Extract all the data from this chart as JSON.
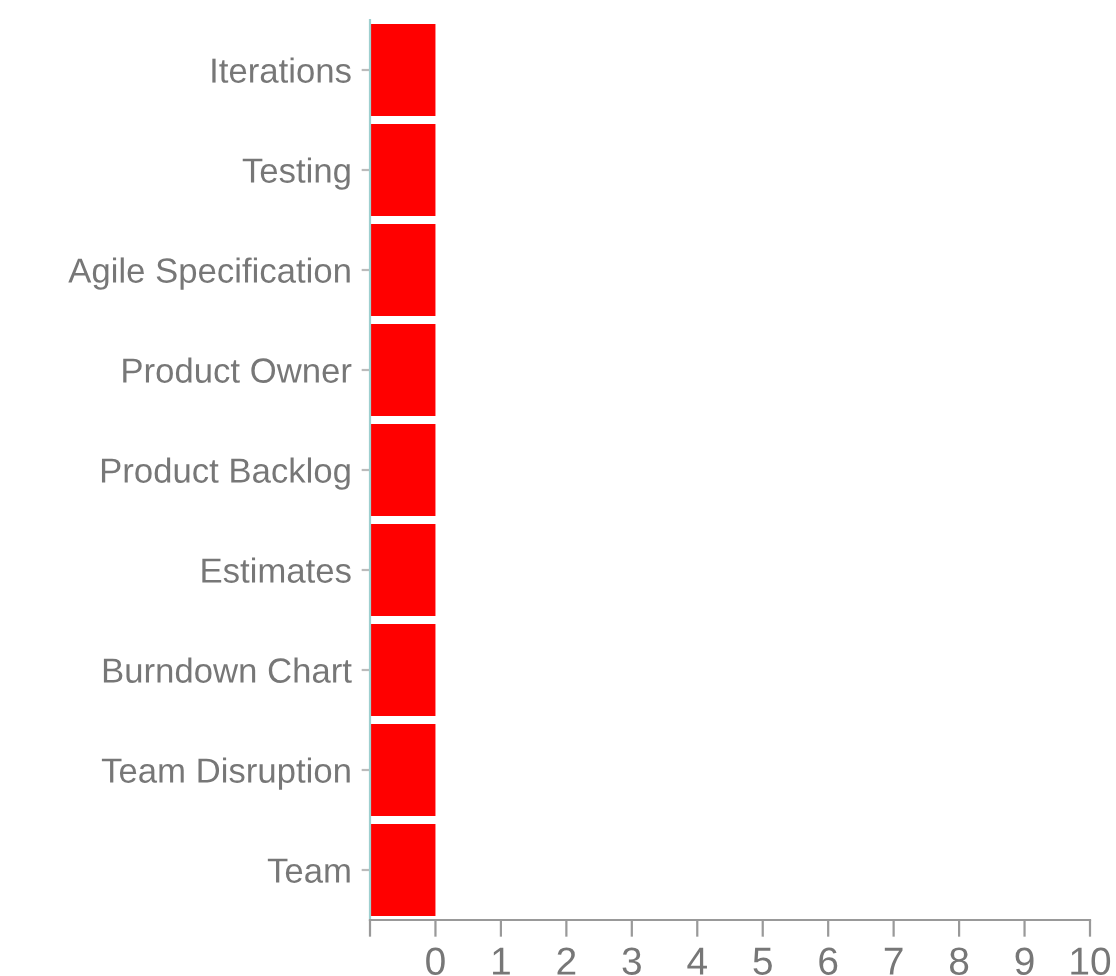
{
  "chart_data": {
    "type": "bar",
    "orientation": "horizontal",
    "categories": [
      "Iterations",
      "Testing",
      "Agile Specification",
      "Product Owner",
      "Product Backlog",
      "Estimates",
      "Burndown Chart",
      "Team Disruption",
      "Team"
    ],
    "values": [
      1,
      1,
      1,
      1,
      1,
      1,
      1,
      1,
      1
    ],
    "base": [
      -1,
      -1,
      -1,
      -1,
      -1,
      -1,
      -1,
      -1,
      -1
    ],
    "color": "#ff0000",
    "xlim": [
      -1,
      10
    ],
    "xticks": [
      {
        "value": -1,
        "label": null
      },
      0,
      1,
      2,
      3,
      4,
      5,
      6,
      7,
      8,
      9,
      10
    ],
    "grid": false,
    "legend": false
  }
}
